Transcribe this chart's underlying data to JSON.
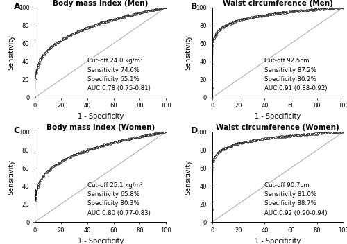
{
  "panels": [
    {
      "label": "A",
      "title": "Body mass index (Men)",
      "annotation": "Cut-off 24.0 kg/m²\nSensitivity 74.6%\nSpecificity 65.1%\nAUC 0.78 (0.75-0.81)",
      "auc_power": 0.282
    },
    {
      "label": "B",
      "title": "Waist circumference (Men)",
      "annotation": "Cut-off 92.5cm\nSensitivity 87.2%\nSpecificity 80.2%\nAUC 0.91 (0.88-0.92)",
      "auc_power": 0.099
    },
    {
      "label": "C",
      "title": "Body mass index (Women)",
      "annotation": "Cut-off 25.1 kg/m²\nSensitivity 65.8%\nSpecificity 80.3%\nAUC 0.80 (0.77-0.83)",
      "auc_power": 0.25
    },
    {
      "label": "D",
      "title": "Waist circumference (Women)",
      "annotation": "Cut-off 90.7cm\nSensitivity 81.0%\nSpecificity 88.7%\nAUC 0.92 (0.90-0.94)",
      "auc_power": 0.087
    }
  ],
  "bg_color": "#ffffff",
  "curve_color": "#000000",
  "diag_color": "#b0b0b0",
  "marker": "o",
  "markersize": 1.5,
  "linewidth": 0.9,
  "xlabel": "1 - Specificity",
  "ylabel": "Sensitivity",
  "xlim": [
    0,
    100
  ],
  "ylim": [
    0,
    100
  ],
  "xticks": [
    0,
    20,
    40,
    60,
    80,
    100
  ],
  "yticks": [
    0,
    20,
    40,
    60,
    80,
    100
  ],
  "annotation_fontsize": 6.2,
  "title_fontsize": 7.5,
  "label_fontsize": 7,
  "tick_fontsize": 6,
  "panel_label_fontsize": 9
}
